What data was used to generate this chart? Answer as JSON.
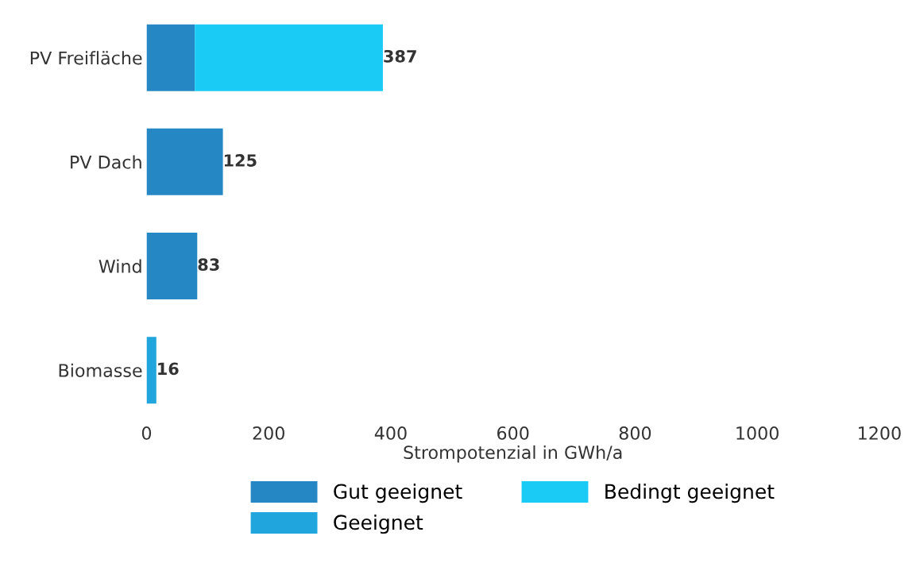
{
  "chart_data": {
    "type": "bar",
    "orientation": "horizontal",
    "stacked": true,
    "xlabel": "Strompotenzial in GWh/a",
    "categories": [
      "PV Freifläche",
      "PV Dach",
      "Wind",
      "Biomasse"
    ],
    "series": [
      {
        "name": "Gut geeignet",
        "color": "#2587c3",
        "values": [
          79,
          125,
          83,
          null
        ]
      },
      {
        "name": "Geeignet",
        "color": "#20a6dd",
        "values": [
          null,
          null,
          null,
          16
        ]
      },
      {
        "name": "Bedingt geeignet",
        "color": "#1acbf5",
        "values": [
          308,
          null,
          null,
          null
        ]
      }
    ],
    "totals": [
      "387",
      "125",
      "83",
      "16"
    ],
    "xlim": [
      0,
      1200
    ],
    "xticks": [
      0,
      200,
      400,
      600,
      800,
      1000,
      1200
    ],
    "grid": false,
    "legend": "bottom"
  }
}
